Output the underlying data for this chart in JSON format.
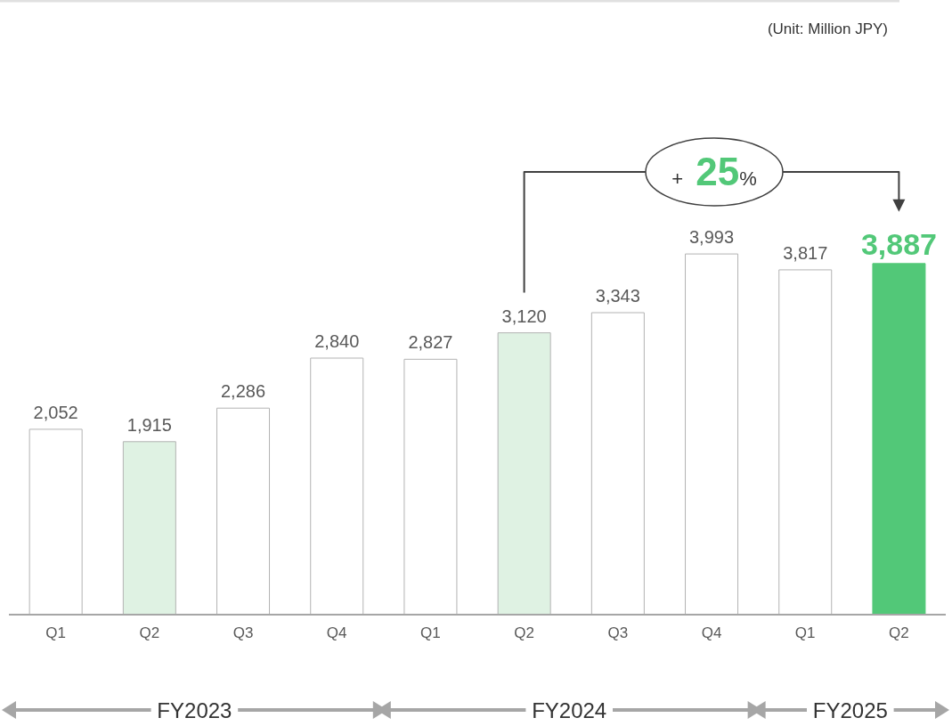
{
  "chart_data": {
    "type": "bar",
    "categories": [
      "Q1",
      "Q2",
      "Q3",
      "Q4",
      "Q1",
      "Q2",
      "Q3",
      "Q4",
      "Q1",
      "Q2"
    ],
    "values": [
      2052,
      1915,
      2286,
      2840,
      2827,
      3120,
      3343,
      3993,
      3817,
      3887
    ],
    "colors": [
      "#ffffff",
      "#dff2e3",
      "#ffffff",
      "#ffffff",
      "#ffffff",
      "#dff2e3",
      "#ffffff",
      "#ffffff",
      "#ffffff",
      "#52c878"
    ],
    "value_labels": [
      "2,052",
      "1,915",
      "2,286",
      "2,840",
      "2,827",
      "3,120",
      "3,343",
      "3,993",
      "3,817",
      "3,887"
    ],
    "grid": false,
    "legend": false,
    "annotations": [
      "(Unit: Million JPY)",
      "+ 25%",
      "FY2023",
      "FY2024",
      "FY2025"
    ]
  }
}
